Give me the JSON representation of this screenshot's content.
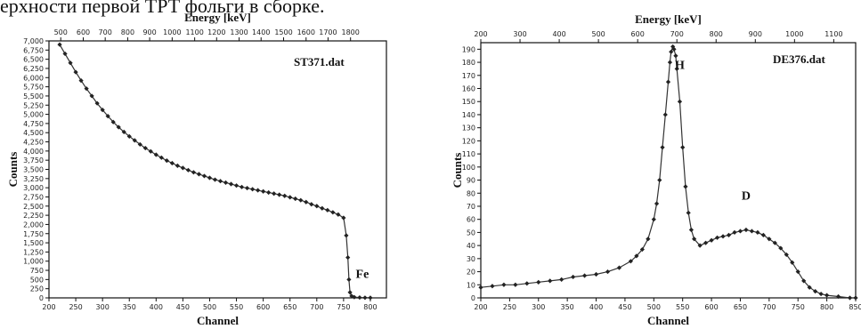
{
  "caption": "ерхности первой ТРТ фольги в сборке.",
  "chart_data": [
    {
      "type": "scatter",
      "filename": "ST371.dat",
      "xlabel": "Channel",
      "ylabel": "Counts",
      "top_axis_label": "Energy [keV]",
      "xlim": [
        200,
        830
      ],
      "ylim": [
        0,
        7000
      ],
      "x_ticks": [
        "200",
        "250",
        "300",
        "350",
        "400",
        "450",
        "500",
        "550",
        "600",
        "650",
        "700",
        "750",
        "800"
      ],
      "y_ticks": [
        "0",
        "250",
        "500",
        "750",
        "1,000",
        "1,250",
        "1,500",
        "1,750",
        "2,000",
        "2,250",
        "2,500",
        "2,750",
        "3,000",
        "3,250",
        "3,500",
        "3,750",
        "4,000",
        "4,250",
        "4,500",
        "4,750",
        "5,000",
        "5,250",
        "5,500",
        "5,750",
        "6,000",
        "6,250",
        "6,500",
        "6,750",
        "7,000"
      ],
      "top_ticks": [
        "500",
        "600",
        "700",
        "800",
        "900",
        "1000",
        "1100",
        "1200",
        "1300",
        "1400",
        "1500",
        "1600",
        "1700",
        "1800"
      ],
      "top_tick_channels": [
        222,
        264,
        305,
        347,
        388,
        430,
        472,
        513,
        555,
        596,
        638,
        680,
        721,
        763
      ],
      "annotations": [
        {
          "text": "Fe",
          "x": 785,
          "y": 550
        }
      ],
      "x": [
        220,
        230,
        240,
        250,
        260,
        270,
        280,
        290,
        300,
        310,
        320,
        330,
        340,
        350,
        360,
        370,
        380,
        390,
        400,
        410,
        420,
        430,
        440,
        450,
        460,
        470,
        480,
        490,
        500,
        510,
        520,
        530,
        540,
        550,
        560,
        570,
        580,
        590,
        600,
        610,
        620,
        630,
        640,
        650,
        660,
        670,
        680,
        690,
        700,
        710,
        720,
        730,
        740,
        750,
        755,
        758,
        760,
        762,
        765,
        770,
        780,
        790,
        800
      ],
      "y": [
        6900,
        6650,
        6400,
        6150,
        5920,
        5700,
        5500,
        5300,
        5120,
        4950,
        4790,
        4650,
        4520,
        4400,
        4290,
        4180,
        4080,
        3990,
        3900,
        3820,
        3740,
        3670,
        3600,
        3540,
        3480,
        3420,
        3370,
        3320,
        3270,
        3220,
        3180,
        3140,
        3100,
        3060,
        3020,
        2990,
        2960,
        2930,
        2900,
        2870,
        2840,
        2810,
        2780,
        2740,
        2700,
        2660,
        2610,
        2550,
        2500,
        2440,
        2390,
        2330,
        2270,
        2180,
        1700,
        1100,
        500,
        150,
        50,
        20,
        10,
        5,
        3
      ]
    },
    {
      "type": "scatter",
      "filename": "DE376.dat",
      "xlabel": "Channel",
      "ylabel": "Counts",
      "top_axis_label": "Energy [keV]",
      "xlim": [
        200,
        850
      ],
      "ylim": [
        0,
        195
      ],
      "x_ticks": [
        "200",
        "250",
        "300",
        "350",
        "400",
        "450",
        "500",
        "550",
        "600",
        "650",
        "700",
        "750",
        "800",
        "850"
      ],
      "y_ticks": [
        "0",
        "10",
        "20",
        "30",
        "40",
        "50",
        "60",
        "70",
        "80",
        "90",
        "100",
        "110",
        "120",
        "130",
        "140",
        "150",
        "160",
        "170",
        "180",
        "190"
      ],
      "top_ticks": [
        "200",
        "300",
        "400",
        "500",
        "600",
        "700",
        "800",
        "900",
        "1000",
        "1100"
      ],
      "top_tick_channels": [
        200,
        268,
        336,
        404,
        472,
        540,
        608,
        676,
        744,
        812
      ],
      "annotations": [
        {
          "text": "H",
          "x": 545,
          "y": 175
        },
        {
          "text": "D",
          "x": 660,
          "y": 75
        }
      ],
      "x": [
        200,
        220,
        240,
        260,
        280,
        300,
        320,
        340,
        360,
        380,
        400,
        420,
        440,
        460,
        470,
        480,
        490,
        500,
        505,
        510,
        515,
        520,
        525,
        528,
        530,
        533,
        535,
        538,
        540,
        545,
        550,
        555,
        560,
        565,
        570,
        580,
        590,
        600,
        610,
        620,
        630,
        640,
        650,
        660,
        670,
        680,
        690,
        700,
        710,
        720,
        730,
        740,
        750,
        760,
        770,
        780,
        790,
        800,
        820,
        840,
        850
      ],
      "y": [
        8,
        9,
        10,
        10,
        11,
        12,
        13,
        14,
        16,
        17,
        18,
        20,
        23,
        28,
        32,
        37,
        45,
        60,
        72,
        90,
        115,
        140,
        165,
        180,
        188,
        192,
        190,
        185,
        175,
        150,
        115,
        85,
        65,
        52,
        45,
        40,
        42,
        44,
        46,
        47,
        48,
        50,
        51,
        52,
        51,
        50,
        48,
        45,
        42,
        38,
        33,
        27,
        20,
        13,
        8,
        5,
        3,
        2,
        1,
        0,
        0
      ]
    }
  ]
}
